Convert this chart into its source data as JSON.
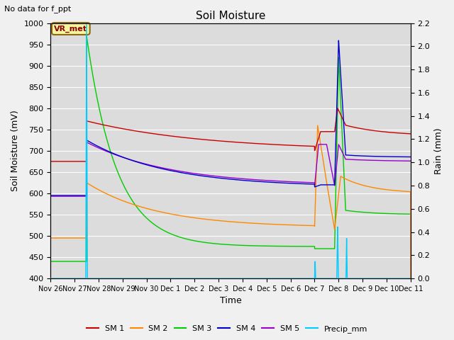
{
  "title": "Soil Moisture",
  "subtitle": "No data for f_ppt",
  "ylabel_left": "Soil Moisture (mV)",
  "ylabel_right": "Rain (mm)",
  "xlabel": "Time",
  "ylim_left": [
    400,
    1000
  ],
  "ylim_right": [
    0.0,
    2.2
  ],
  "yticks_left": [
    400,
    450,
    500,
    550,
    600,
    650,
    700,
    750,
    800,
    850,
    900,
    950,
    1000
  ],
  "yticks_right": [
    0.0,
    0.2,
    0.4,
    0.6,
    0.8,
    1.0,
    1.2,
    1.4,
    1.6,
    1.8,
    2.0,
    2.2
  ],
  "background_color": "#dcdcdc",
  "fig_background": "#f0f0f0",
  "colors": {
    "SM1": "#cc0000",
    "SM2": "#ff8800",
    "SM3": "#00cc00",
    "SM4": "#0000cc",
    "SM5": "#9900cc",
    "precip": "#00ccff"
  },
  "annotation_text": "VR_met",
  "tick_labels": [
    "Nov 26",
    "Nov 27",
    "Nov 28",
    "Nov 29",
    "Nov 30",
    "Dec 1",
    "Dec 2",
    "Dec 3",
    "Dec 4",
    "Dec 5",
    "Dec 6",
    "Dec 7",
    "Dec 8",
    "Dec 9",
    "Dec 10",
    "Dec 11"
  ],
  "tick_hours": [
    0,
    24,
    48,
    72,
    96,
    120,
    144,
    168,
    192,
    216,
    240,
    264,
    288,
    312,
    336,
    360
  ]
}
